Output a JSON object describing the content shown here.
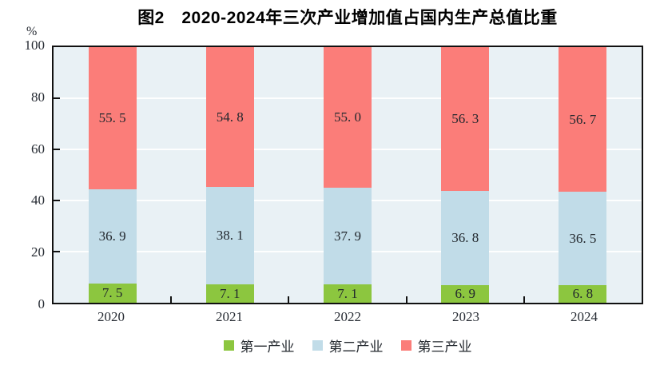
{
  "figure": {
    "title": "图2　2020-2024年三次产业增加值占国内生产总值比重"
  },
  "y_axis": {
    "unit": "%",
    "ticks": [
      "100",
      "80",
      "60",
      "40",
      "20",
      "0"
    ]
  },
  "x_axis": {
    "ticks": [
      "2020",
      "2021",
      "2022",
      "2023",
      "2024"
    ]
  },
  "legend": {
    "items": [
      {
        "label": "第一产业",
        "color": "#8cc63f"
      },
      {
        "label": "第二产业",
        "color": "#c1dce8"
      },
      {
        "label": "第三产业",
        "color": "#fb7d79"
      }
    ]
  },
  "colors": {
    "plot_background": "#e9f1f5",
    "axis_frame": "#111111",
    "gridline": "#fdfefe",
    "first_industry": "#8cc63f",
    "second_industry": "#c1dce8",
    "third_industry": "#fb7d79",
    "label_text": "#23282e"
  },
  "chart_data": {
    "type": "bar",
    "stacked": true,
    "title": "图2　2020-2024年三次产业增加值占国内生产总值比重",
    "categories": [
      "2020",
      "2021",
      "2022",
      "2023",
      "2024"
    ],
    "series": [
      {
        "name": "第一产业",
        "color": "#8cc63f",
        "values": [
          7.5,
          7.1,
          7.1,
          6.9,
          6.8
        ],
        "display_labels": [
          "7. 5",
          "7. 1",
          "7. 1",
          "6. 9",
          "6. 8"
        ]
      },
      {
        "name": "第二产业",
        "color": "#c1dce8",
        "values": [
          36.9,
          38.1,
          37.9,
          36.8,
          36.5
        ],
        "display_labels": [
          "36. 9",
          "38. 1",
          "37. 9",
          "36. 8",
          "36. 5"
        ]
      },
      {
        "name": "第三产业",
        "color": "#fb7d79",
        "values": [
          55.5,
          54.8,
          55.0,
          56.3,
          56.7
        ],
        "display_labels": [
          "55. 5",
          "54. 8",
          "55. 0",
          "56. 3",
          "56. 7"
        ]
      }
    ],
    "xlabel": "",
    "ylabel": "%",
    "ylim": [
      0,
      100
    ],
    "grid": true,
    "gridlines_at": [
      20,
      40,
      60,
      80
    ],
    "legend_position": "bottom"
  }
}
